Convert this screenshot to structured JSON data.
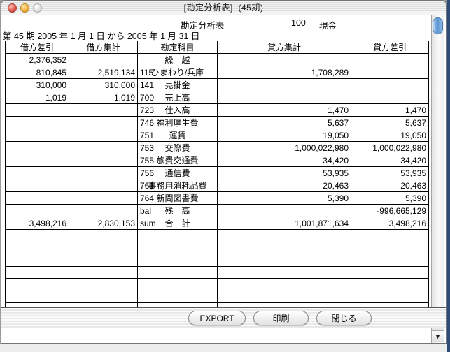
{
  "window": {
    "title": "[勘定分析表]  (45期)"
  },
  "header": {
    "report_title": "勘定分析表",
    "account_code": "100",
    "account_name": "現金",
    "period_line": "第 45 期  2005 年 1 月 1 日  から 2005 年 1 月 31 日"
  },
  "table": {
    "columns": [
      "借方差引",
      "借方集計",
      "勘定科目",
      "貸方集計",
      "貸方差引"
    ],
    "rows": [
      {
        "debit_diff": "2,376,352",
        "debit_total": "",
        "code": "",
        "name": "繰　越",
        "credit_total": "",
        "credit_diff": ""
      },
      {
        "debit_diff": "810,845",
        "debit_total": "2,519,134",
        "code": "115",
        "name": "ひまわり/兵庫",
        "credit_total": "1,708,289",
        "credit_diff": ""
      },
      {
        "debit_diff": "310,000",
        "debit_total": "310,000",
        "code": "141",
        "name": "売掛金",
        "credit_total": "",
        "credit_diff": ""
      },
      {
        "debit_diff": "1,019",
        "debit_total": "1,019",
        "code": "700",
        "name": "売上高",
        "credit_total": "",
        "credit_diff": ""
      },
      {
        "debit_diff": "",
        "debit_total": "",
        "code": "723",
        "name": "仕入高",
        "credit_total": "1,470",
        "credit_diff": "1,470"
      },
      {
        "debit_diff": "",
        "debit_total": "",
        "code": "746",
        "name": "福利厚生費",
        "credit_total": "5,637",
        "credit_diff": "5,637"
      },
      {
        "debit_diff": "",
        "debit_total": "",
        "code": "751",
        "name": "運賃",
        "credit_total": "19,050",
        "credit_diff": "19,050"
      },
      {
        "debit_diff": "",
        "debit_total": "",
        "code": "753",
        "name": "交際費",
        "credit_total": "1,000,022,980",
        "credit_diff": "1,000,022,980"
      },
      {
        "debit_diff": "",
        "debit_total": "",
        "code": "755",
        "name": "旅費交通費",
        "credit_total": "34,420",
        "credit_diff": "34,420"
      },
      {
        "debit_diff": "",
        "debit_total": "",
        "code": "756",
        "name": "通信費",
        "credit_total": "53,935",
        "credit_diff": "53,935"
      },
      {
        "debit_diff": "",
        "debit_total": "",
        "code": "761",
        "name": "事務用消耗品費",
        "credit_total": "20,463",
        "credit_diff": "20,463"
      },
      {
        "debit_diff": "",
        "debit_total": "",
        "code": "764",
        "name": "新聞図書費",
        "credit_total": "5,390",
        "credit_diff": "5,390"
      },
      {
        "debit_diff": "",
        "debit_total": "",
        "code": "bal",
        "name": "残　高",
        "credit_total": "",
        "credit_diff": "-996,665,129"
      },
      {
        "debit_diff": "3,498,216",
        "debit_total": "2,830,153",
        "code": "sum",
        "name": "合　計",
        "credit_total": "1,001,871,634",
        "credit_diff": "3,498,216"
      }
    ],
    "empty_row_count": 7
  },
  "scrollbar": {
    "up_arrow": "▲",
    "down_arrow": "▼"
  },
  "footer": {
    "buttons": [
      {
        "label": "EXPORT"
      },
      {
        "label": "印刷"
      },
      {
        "label": "閉じる"
      }
    ]
  },
  "colors": {
    "accent_scroll_thumb": "#5a93d2",
    "titlebar_pinstripe": "#dcdcdc",
    "table_border": "#000000",
    "desktop_right": "#2e4c77",
    "close_light": "#e05a4e",
    "minimize_light": "#f3b13f"
  }
}
